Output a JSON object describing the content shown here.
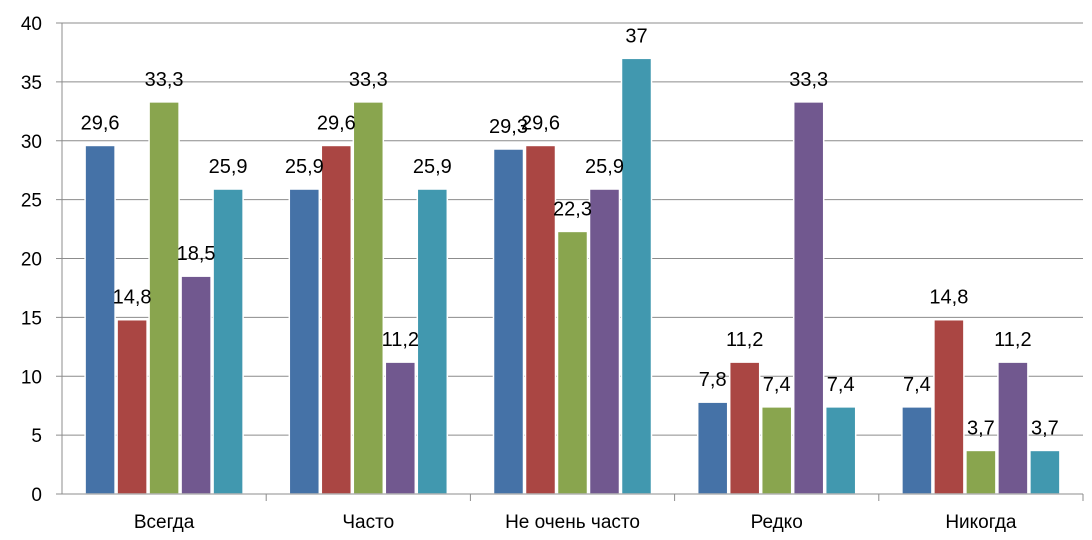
{
  "chart_data": {
    "type": "bar",
    "categories": [
      "Всегда",
      "Часто",
      "Не очень часто",
      "Редко",
      "Никогда"
    ],
    "series": [
      {
        "values": [
          29.6,
          25.9,
          29.3,
          7.8,
          7.4
        ],
        "labels": [
          "29,6",
          "25,9",
          "29,3",
          "7,8",
          "7,4"
        ],
        "color": "#4572A7"
      },
      {
        "values": [
          14.8,
          29.6,
          29.6,
          11.2,
          14.8
        ],
        "labels": [
          "14,8",
          "29,6",
          "29,6",
          "11,2",
          "14,8"
        ],
        "color": "#AA4643"
      },
      {
        "values": [
          33.3,
          33.3,
          22.3,
          7.4,
          3.7
        ],
        "labels": [
          "33,3",
          "33,3",
          "22,3",
          "7,4",
          "3,7"
        ],
        "color": "#89A54E"
      },
      {
        "values": [
          18.5,
          11.2,
          25.9,
          33.3,
          11.2
        ],
        "labels": [
          "18,5",
          "11,2",
          "25,9",
          "33,3",
          "11,2"
        ],
        "color": "#71588F"
      },
      {
        "values": [
          25.9,
          25.9,
          37,
          7.4,
          3.7
        ],
        "labels": [
          "25,9",
          "25,9",
          "37",
          "7,4",
          "3,7"
        ],
        "color": "#4198AF"
      }
    ],
    "yticks": [
      "0",
      "5",
      "10",
      "15",
      "20",
      "25",
      "30",
      "35",
      "40"
    ],
    "ylim": [
      0,
      40
    ],
    "grid": true,
    "legend": "none"
  }
}
